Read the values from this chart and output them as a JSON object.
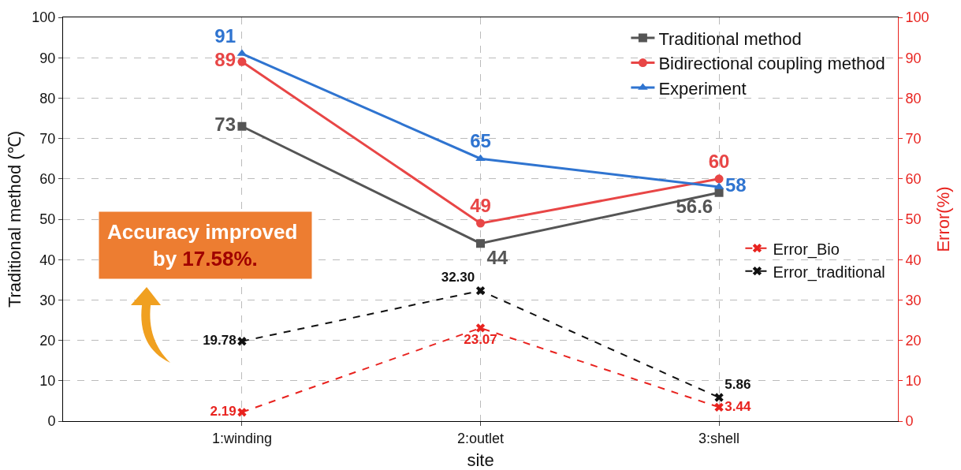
{
  "chart_data": {
    "type": "line",
    "xlabel": "site",
    "ylabel": "Traditional method (℃)",
    "y2label": "Error(%)",
    "categories": [
      "1:winding",
      "2:outlet",
      "3:shell"
    ],
    "ylim": [
      0,
      100
    ],
    "yticks": [
      0,
      10,
      20,
      30,
      40,
      50,
      60,
      70,
      80,
      90,
      100
    ],
    "y2lim": [
      0,
      100
    ],
    "y2ticks": [
      0,
      10,
      20,
      30,
      40,
      50,
      60,
      70,
      80,
      90,
      100
    ],
    "grid": true,
    "legend": "top right",
    "series": [
      {
        "name": "Traditional method",
        "color": "#555555",
        "marker": "square",
        "line_style": "solid",
        "values": [
          73,
          44,
          56.6
        ],
        "value_labels": [
          "73",
          "44",
          "56.6"
        ]
      },
      {
        "name": "Bidirectional coupling method",
        "color": "#e84646",
        "marker": "circle",
        "line_style": "solid",
        "values": [
          89,
          49,
          60
        ],
        "value_labels": [
          "89",
          "49",
          "60"
        ]
      },
      {
        "name": "Experiment",
        "color": "#2f74d0",
        "marker": "triangle",
        "line_style": "solid",
        "values": [
          91,
          65,
          58
        ],
        "value_labels": [
          "91",
          "65",
          "58"
        ]
      },
      {
        "name": "Error_Bio",
        "color": "#e8231f",
        "marker": "cross",
        "line_style": "dashed",
        "axis": "y2",
        "values": [
          2.19,
          23.07,
          3.44
        ],
        "value_labels": [
          "2.19",
          "23.07",
          "3.44"
        ]
      },
      {
        "name": "Error_traditional",
        "color": "#111111",
        "marker": "cross",
        "line_style": "dashed",
        "axis": "y2",
        "values": [
          19.78,
          32.3,
          5.86
        ],
        "value_labels": [
          "19.78",
          "32.30",
          "5.86"
        ]
      }
    ],
    "annotations": [
      "Accuracy improved by 17.58%."
    ]
  }
}
